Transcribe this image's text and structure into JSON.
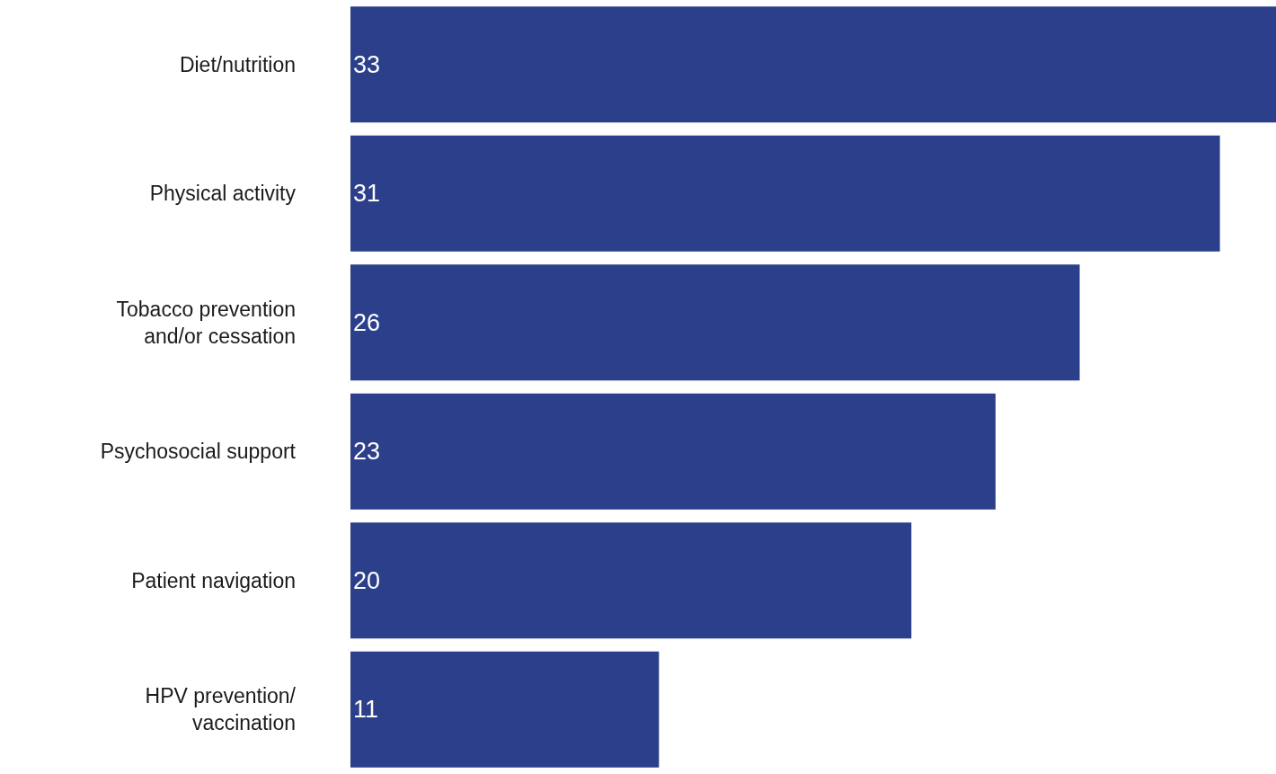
{
  "chart_data": {
    "type": "bar",
    "orientation": "horizontal",
    "categories": [
      "Diet/nutrition",
      "Physical activity",
      "Tobacco prevention\nand/or cessation",
      "Psychosocial support",
      "Patient navigation",
      "HPV prevention/\nvaccination"
    ],
    "values": [
      33,
      31,
      26,
      23,
      20,
      11
    ],
    "color": "#2b3f8a",
    "data_labels": true,
    "legend": false
  }
}
